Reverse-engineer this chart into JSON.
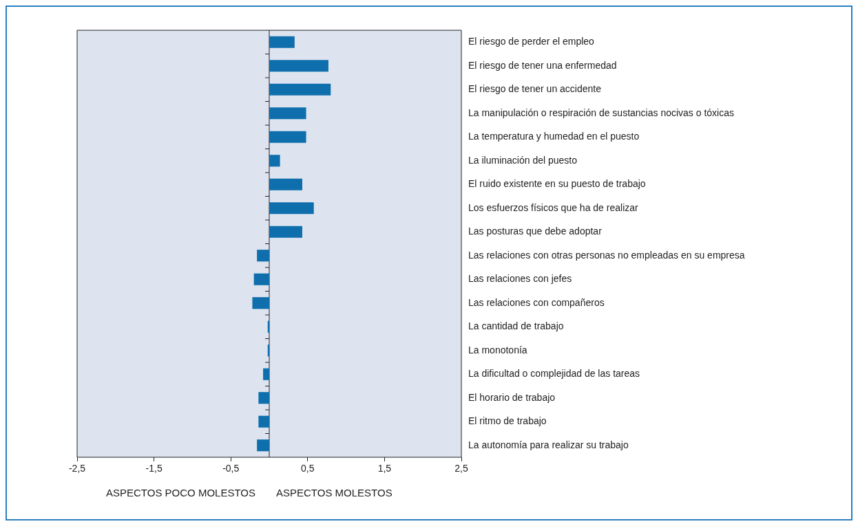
{
  "chart_data": {
    "type": "bar",
    "orientation": "horizontal",
    "color": "#0f6fac",
    "categories": [
      "El riesgo de perder el empleo",
      "El riesgo de tener una enfermedad",
      "El riesgo de tener un accidente",
      "La manipulación o respiración de sustancias nocivas o tóxicas",
      "La temperatura y humedad en el puesto",
      "La iluminación del puesto",
      "El ruido existente en su puesto de trabajo",
      "Los esfuerzos físicos que ha de realizar",
      "Las posturas que debe adoptar",
      "Las relaciones con otras personas no empleadas en su empresa",
      "Las relaciones con jefes",
      "Las relaciones con compañeros",
      "La cantidad de trabajo",
      "La monotonía",
      "La dificultad o complejidad de las tareas",
      "El horario de trabajo",
      "El ritmo de trabajo",
      "La autonomía para realizar su trabajo"
    ],
    "values": [
      0.33,
      0.77,
      0.8,
      0.48,
      0.48,
      0.14,
      0.43,
      0.58,
      0.43,
      -0.16,
      -0.2,
      -0.22,
      -0.02,
      -0.02,
      -0.08,
      -0.14,
      -0.14,
      -0.16
    ],
    "xlim": [
      -2.5,
      2.5
    ],
    "xticks": [
      {
        "value": -2.5,
        "label": "-2,5"
      },
      {
        "value": -1.5,
        "label": "-1,5"
      },
      {
        "value": -0.5,
        "label": "-0,5"
      },
      {
        "value": 0.5,
        "label": "0,5"
      },
      {
        "value": 1.5,
        "label": "1,5"
      },
      {
        "value": 2.5,
        "label": "2,5"
      }
    ],
    "annotations": [
      "ASPECTOS POCO MOLESTOS",
      "ASPECTOS MOLESTOS"
    ],
    "grid": false,
    "legend": false
  }
}
